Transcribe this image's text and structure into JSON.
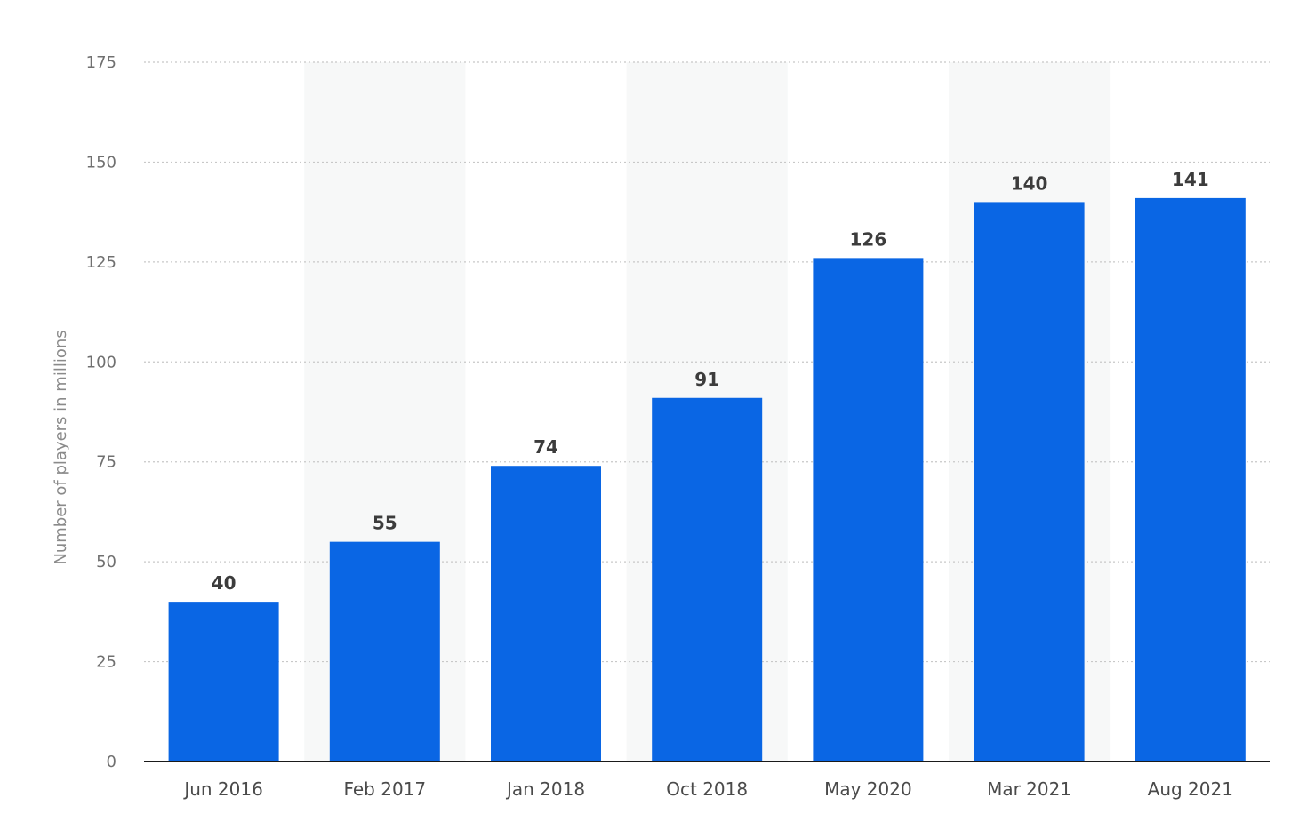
{
  "chart_data": {
    "type": "bar",
    "title": "",
    "xlabel": "",
    "ylabel": "Number of players in millions",
    "categories": [
      "Jun 2016",
      "Feb 2017",
      "Jan 2018",
      "Oct 2018",
      "May 2020",
      "Mar 2021",
      "Aug 2021"
    ],
    "values": [
      40,
      55,
      74,
      91,
      126,
      140,
      141
    ],
    "ylim": [
      0,
      175
    ],
    "yticks": [
      0,
      25,
      50,
      75,
      100,
      125,
      150,
      175
    ],
    "grid": true,
    "bar_color": "#0a66e4",
    "alt_band_color": "#f7f8f8",
    "gridline_color": "#c8c8c8",
    "axis_color": "#1a1a1a"
  }
}
